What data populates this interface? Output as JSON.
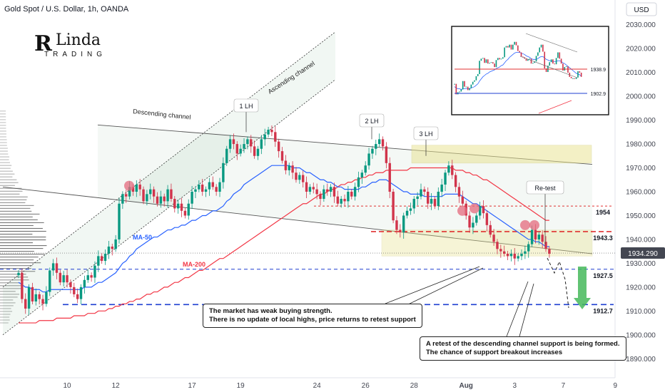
{
  "header": {
    "title": "Gold Spot / U.S. Dollar, 1h, OANDA"
  },
  "logo": {
    "mark": "R",
    "name": "Linda",
    "sub": "TRADING"
  },
  "currency": "USD",
  "colors": {
    "up": "#089981",
    "down": "#d1344b",
    "ma50": "#2962ff",
    "ma200": "#f23645",
    "support": "#1e3fd1",
    "resistance": "#e03030",
    "channel": "#3c8c5c",
    "zone": "#e8e28c",
    "arrow": "#45b85a"
  },
  "chart_data": {
    "type": "candlestick",
    "title": "Gold Spot / U.S. Dollar, 1h, OANDA",
    "ylim": [
      1885,
      2035
    ],
    "y_ticks": [
      1890,
      1900,
      1910,
      1920,
      1930,
      1940,
      1950,
      1960,
      1970,
      1980,
      1990,
      2000,
      2010,
      2020,
      2030
    ],
    "y_tick_labels": [
      "1890.000",
      "1900.000",
      "1910.000",
      "1920.000",
      "1930.000",
      "1940.000",
      "1950.000",
      "1960.000",
      "1970.000",
      "1980.000",
      "1990.000",
      "2000.000",
      "2010.000",
      "2020.000",
      "2030.000"
    ],
    "x_ticks": [
      {
        "label": "10",
        "i": 14
      },
      {
        "label": "12",
        "i": 28
      },
      {
        "label": "17",
        "i": 50
      },
      {
        "label": "19",
        "i": 64
      },
      {
        "label": "24",
        "i": 86
      },
      {
        "label": "26",
        "i": 100
      },
      {
        "label": "28",
        "i": 114
      },
      {
        "label": "Aug",
        "i": 129
      },
      {
        "label": "3",
        "i": 143
      },
      {
        "label": "7",
        "i": 157
      },
      {
        "label": "9",
        "i": 172
      }
    ],
    "series": [
      {
        "name": "Price",
        "kind": "close",
        "values": [
          1926,
          1915,
          1911,
          1920,
          1914,
          1917,
          1915,
          1913,
          1918,
          1927,
          1930,
          1926,
          1922,
          1925,
          1922,
          1920,
          1917,
          1915,
          1920,
          1923,
          1925,
          1924,
          1929,
          1933,
          1931,
          1934,
          1937,
          1936,
          1940,
          1955,
          1959,
          1958,
          1962,
          1960,
          1963,
          1961,
          1956,
          1959,
          1961,
          1958,
          1955,
          1958,
          1956,
          1961,
          1957,
          1953,
          1955,
          1952,
          1950,
          1955,
          1960,
          1961,
          1963,
          1960,
          1961,
          1964,
          1962,
          1960,
          1964,
          1972,
          1978,
          1982,
          1980,
          1976,
          1978,
          1980,
          1982,
          1979,
          1975,
          1978,
          1982,
          1984,
          1986,
          1985,
          1981,
          1977,
          1973,
          1969,
          1971,
          1968,
          1965,
          1967,
          1964,
          1960,
          1962,
          1961,
          1959,
          1957,
          1961,
          1960,
          1962,
          1958,
          1955,
          1957,
          1956,
          1960,
          1958,
          1962,
          1966,
          1968,
          1971,
          1976,
          1978,
          1980,
          1982,
          1979,
          1972,
          1960,
          1948,
          1944,
          1943,
          1950,
          1952,
          1953,
          1957,
          1958,
          1961,
          1960,
          1955,
          1957,
          1954,
          1960,
          1963,
          1968,
          1971,
          1967,
          1962,
          1958,
          1955,
          1950,
          1945,
          1947,
          1950,
          1954,
          1951,
          1946,
          1942,
          1939,
          1936,
          1935,
          1934,
          1933,
          1934,
          1932,
          1933,
          1934,
          1935,
          1938,
          1944,
          1940,
          1942,
          1939,
          1936,
          1934
        ]
      },
      {
        "name": "MA-50",
        "values": [
          1922,
          1921,
          1920,
          1920,
          1919,
          1919,
          1919,
          1918,
          1918,
          1919,
          1919,
          1919,
          1919,
          1919,
          1919,
          1919,
          1919,
          1919,
          1919,
          1920,
          1920,
          1920,
          1921,
          1922,
          1922,
          1923,
          1924,
          1925,
          1926,
          1928,
          1930,
          1931,
          1933,
          1934,
          1936,
          1937,
          1938,
          1939,
          1940,
          1941,
          1941,
          1942,
          1943,
          1944,
          1944,
          1945,
          1945,
          1946,
          1946,
          1947,
          1948,
          1948,
          1949,
          1950,
          1950,
          1951,
          1952,
          1952,
          1953,
          1954,
          1956,
          1957,
          1959,
          1960,
          1961,
          1963,
          1964,
          1965,
          1966,
          1967,
          1968,
          1969,
          1970,
          1971,
          1971,
          1971,
          1971,
          1971,
          1971,
          1970,
          1970,
          1970,
          1969,
          1968,
          1968,
          1967,
          1966,
          1965,
          1965,
          1964,
          1964,
          1963,
          1962,
          1962,
          1961,
          1961,
          1961,
          1961,
          1961,
          1962,
          1962,
          1963,
          1964,
          1964,
          1965,
          1965,
          1965,
          1964,
          1963,
          1962,
          1961,
          1960,
          1960,
          1959,
          1959,
          1959,
          1959,
          1958,
          1958,
          1958,
          1958,
          1958,
          1958,
          1959,
          1959,
          1959,
          1959,
          1959,
          1958,
          1957,
          1956,
          1955,
          1955,
          1954,
          1953,
          1952,
          1951,
          1950,
          1949,
          1948,
          1947,
          1946,
          1945,
          1944,
          1943,
          1942,
          1941,
          1940,
          1940,
          1939,
          1939,
          1938,
          1937,
          1937
        ]
      },
      {
        "name": "MA-200",
        "values": [
          1905,
          1905,
          1905,
          1905,
          1905,
          1905,
          1906,
          1906,
          1906,
          1906,
          1906,
          1907,
          1907,
          1907,
          1907,
          1907,
          1908,
          1908,
          1908,
          1908,
          1909,
          1909,
          1909,
          1910,
          1910,
          1910,
          1911,
          1911,
          1912,
          1912,
          1913,
          1913,
          1914,
          1914,
          1915,
          1915,
          1916,
          1917,
          1917,
          1918,
          1918,
          1919,
          1920,
          1920,
          1921,
          1922,
          1922,
          1923,
          1924,
          1924,
          1925,
          1926,
          1927,
          1927,
          1928,
          1929,
          1930,
          1931,
          1932,
          1932,
          1933,
          1934,
          1935,
          1936,
          1937,
          1938,
          1939,
          1940,
          1941,
          1942,
          1943,
          1944,
          1945,
          1946,
          1947,
          1948,
          1949,
          1950,
          1951,
          1952,
          1953,
          1954,
          1955,
          1955,
          1956,
          1957,
          1958,
          1959,
          1959,
          1960,
          1961,
          1961,
          1962,
          1963,
          1963,
          1964,
          1964,
          1965,
          1965,
          1966,
          1966,
          1967,
          1967,
          1968,
          1968,
          1968,
          1969,
          1969,
          1969,
          1969,
          1969,
          1969,
          1969,
          1970,
          1970,
          1970,
          1970,
          1970,
          1970,
          1970,
          1970,
          1970,
          1970,
          1970,
          1970,
          1970,
          1969,
          1969,
          1969,
          1968,
          1968,
          1967,
          1967,
          1966,
          1965,
          1965,
          1964,
          1963,
          1962,
          1961,
          1960,
          1959,
          1958,
          1957,
          1956,
          1955,
          1954,
          1953,
          1952,
          1951,
          1950,
          1949,
          1948,
          1948
        ]
      }
    ],
    "levels": [
      {
        "value": 1954,
        "label": "1954",
        "style": "dotted-red"
      },
      {
        "value": 1943.3,
        "label": "1943.3",
        "style": "dashed-red"
      },
      {
        "value": 1927.5,
        "label": "1927.5",
        "style": "dashed-blue"
      },
      {
        "value": 1912.7,
        "label": "1912.7",
        "style": "dashed-blue-bold"
      }
    ],
    "current_price": {
      "value": 1934.29,
      "label": "1934.290"
    },
    "channels": [
      {
        "label": "Ascending channel",
        "type": "ascending"
      },
      {
        "label": "Descending channel",
        "type": "descending"
      }
    ],
    "annotations": [
      "1 LH",
      "2 LH",
      "3 LH",
      "Re-test",
      "MA-50",
      "MA-200"
    ],
    "inset": {
      "ylim": [
        1885,
        2035
      ],
      "levels": [
        {
          "value": 1938.9,
          "label": "1938.9"
        },
        {
          "value": 1902.9,
          "label": "1902.9"
        }
      ]
    }
  },
  "notes": {
    "note1": [
      "The market has weak buying strength.",
      "There is no update of local highs, price returns to retest support"
    ],
    "note2": [
      "A retest of the descending channel support is being formed.",
      "The chance of support breakout increases"
    ]
  }
}
